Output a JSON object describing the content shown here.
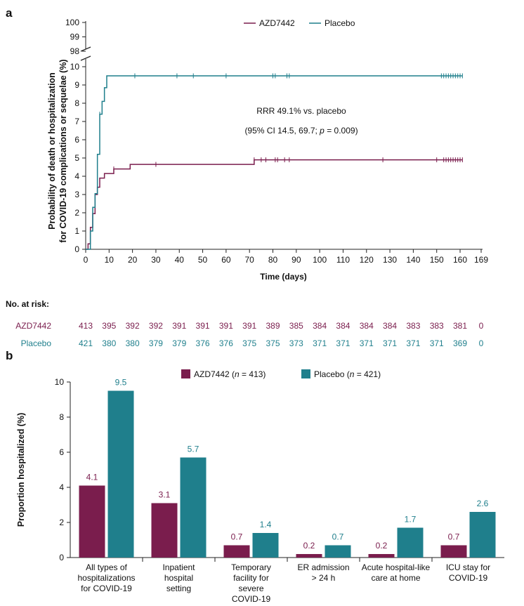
{
  "colors": {
    "azd": "#7a1d4d",
    "placebo": "#1f7f8c",
    "axis": "#222222",
    "text": "#111111"
  },
  "chart_data": [
    {
      "panel_label": "a",
      "type": "line",
      "title": "",
      "xlabel": "Time (days)",
      "ylabel_lines": [
        "Probability of death or hospitalization",
        "for COVID-19 complications or sequelae (%)"
      ],
      "xlim": [
        0,
        169
      ],
      "x_ticks": [
        "0",
        "10",
        "20",
        "30",
        "40",
        "50",
        "60",
        "70",
        "80",
        "90",
        "100",
        "110",
        "120",
        "130",
        "140",
        "150",
        "160",
        "169"
      ],
      "ylim": [
        0,
        10
      ],
      "y_ticks": [
        "0",
        "1",
        "2",
        "3",
        "4",
        "5",
        "6",
        "7",
        "8",
        "9",
        "10"
      ],
      "y_break_ticks": [
        "98",
        "99",
        "100"
      ],
      "legend": [
        "AZD7442",
        "Placebo"
      ],
      "legend_position": "top-center",
      "annotation_line1": "RRR 49.1% vs. placebo",
      "annotation_line2_prefix": "(95% CI 14.5, 69.7; ",
      "annotation_p": "p",
      "annotation_line2_suffix": " = 0.009)",
      "series": [
        {
          "name": "AZD7442",
          "steps": [
            [
              0,
              0
            ],
            [
              1,
              0.3
            ],
            [
              2,
              1.2
            ],
            [
              3,
              1.95
            ],
            [
              4,
              3.0
            ],
            [
              5,
              3.4
            ],
            [
              6,
              3.9
            ],
            [
              8,
              4.15
            ],
            [
              12,
              4.4
            ],
            [
              19,
              4.65
            ],
            [
              72,
              4.9
            ],
            [
              161,
              4.9
            ]
          ],
          "censor": [
            12,
            30,
            72,
            75,
            77,
            81,
            82,
            85,
            87,
            127,
            150,
            153,
            154,
            155,
            156,
            157,
            158,
            159,
            160,
            161
          ]
        },
        {
          "name": "Placebo",
          "steps": [
            [
              0,
              0
            ],
            [
              2,
              1.0
            ],
            [
              3,
              2.3
            ],
            [
              4,
              3.05
            ],
            [
              5,
              5.2
            ],
            [
              6,
              7.4
            ],
            [
              7,
              8.1
            ],
            [
              8,
              8.85
            ],
            [
              9,
              9.5
            ],
            [
              161,
              9.5
            ]
          ],
          "censor": [
            6,
            21,
            39,
            46,
            60,
            80,
            81,
            86,
            87,
            152,
            153,
            154,
            155,
            156,
            157,
            158,
            159,
            160,
            161
          ]
        }
      ]
    },
    {
      "panel_label": "b",
      "type": "bar",
      "title": "",
      "xlabel": "",
      "ylabel": "Proportion hospitalized (%)",
      "ylim": [
        0,
        10
      ],
      "y_ticks": [
        "0",
        "2",
        "4",
        "6",
        "8",
        "10"
      ],
      "legend_position": "top-center",
      "categories": [
        [
          "All types of",
          "hospitalizations",
          "for COVID-19"
        ],
        [
          "Inpatient",
          "hospital",
          "setting"
        ],
        [
          "Temporary",
          "facility for",
          "severe",
          "COVID-19"
        ],
        [
          "ER admission",
          "> 24 h"
        ],
        [
          "Acute hospital-like",
          "care at home"
        ],
        [
          "ICU stay for",
          "COVID-19"
        ]
      ],
      "series": [
        {
          "name": "AZD7442",
          "legend_prefix": "AZD7442 (",
          "legend_n": "n",
          "legend_suffix": " = 413)",
          "values": [
            4.1,
            3.1,
            0.7,
            0.2,
            0.2,
            0.7
          ],
          "labels": [
            "4.1",
            "3.1",
            "0.7",
            "0.2",
            "0.2",
            "0.7"
          ]
        },
        {
          "name": "Placebo",
          "legend_prefix": "Placebo (",
          "legend_n": "n",
          "legend_suffix": " = 421)",
          "values": [
            9.5,
            5.7,
            1.4,
            0.7,
            1.7,
            2.6
          ],
          "labels": [
            "9.5",
            "5.7",
            "1.4",
            "0.7",
            "1.7",
            "2.6"
          ]
        }
      ]
    }
  ],
  "risk_table": {
    "header": "No. at risk:",
    "rows": [
      {
        "name": "AZD7442",
        "values": [
          "413",
          "395",
          "392",
          "392",
          "391",
          "391",
          "391",
          "391",
          "389",
          "385",
          "384",
          "384",
          "384",
          "384",
          "383",
          "383",
          "381",
          "0"
        ]
      },
      {
        "name": "Placebo",
        "values": [
          "421",
          "380",
          "380",
          "379",
          "379",
          "376",
          "376",
          "375",
          "375",
          "373",
          "371",
          "371",
          "371",
          "371",
          "371",
          "371",
          "369",
          "0"
        ]
      }
    ]
  }
}
